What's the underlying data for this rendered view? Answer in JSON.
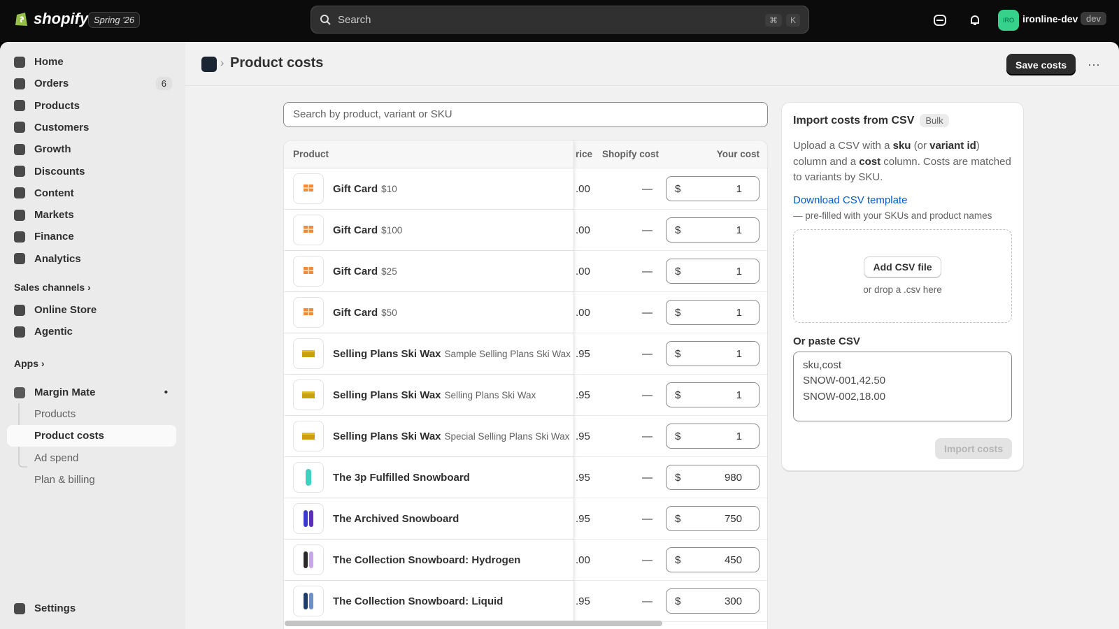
{
  "topbar": {
    "brand": "shopify",
    "badge": "Spring '26",
    "search": "Search",
    "shortcut": [
      "⌘",
      "K"
    ],
    "avatar": "IRO",
    "store": "ironline-dev",
    "store_tag": "dev"
  },
  "sidebar": {
    "nav": [
      {
        "label": "Home"
      },
      {
        "label": "Orders",
        "badge": 6
      },
      {
        "label": "Products"
      },
      {
        "label": "Customers"
      },
      {
        "label": "Growth"
      },
      {
        "label": "Discounts"
      },
      {
        "label": "Content"
      },
      {
        "label": "Markets"
      },
      {
        "label": "Finance"
      },
      {
        "label": "Analytics"
      }
    ],
    "sales_channels": {
      "title": "Sales channels",
      "items": [
        "Online Store",
        "Agentic"
      ]
    },
    "apps": {
      "title": "Apps"
    },
    "app": {
      "name": "Margin Mate",
      "items": [
        "Products",
        "Product costs",
        "Ad spend",
        "Plan & billing"
      ]
    },
    "settings": "Settings"
  },
  "header": {
    "title": "Product costs",
    "save": "Save costs"
  },
  "table": {
    "search_placeholder": "Search by product, variant or SKU",
    "columns": [
      "Product",
      "rice",
      "Shopify cost",
      "Your cost"
    ],
    "rows": [
      {
        "name": "Gift Card",
        "variant": "$10",
        "price": ".00",
        "shopify_cost": "—",
        "currency": "$",
        "cost": 1
      },
      {
        "name": "Gift Card",
        "variant": "$100",
        "price": ".00",
        "shopify_cost": "—",
        "currency": "$",
        "cost": 1
      },
      {
        "name": "Gift Card",
        "variant": "$25",
        "price": ".00",
        "shopify_cost": "—",
        "currency": "$",
        "cost": 1
      },
      {
        "name": "Gift Card",
        "variant": "$50",
        "price": ".00",
        "shopify_cost": "—",
        "currency": "$",
        "cost": 1
      },
      {
        "name": "Selling Plans Ski Wax",
        "variant": "Sample Selling Plans Ski Wax",
        "price": ".95",
        "shopify_cost": "—",
        "currency": "$",
        "cost": 1
      },
      {
        "name": "Selling Plans Ski Wax",
        "variant": "Selling Plans Ski Wax",
        "price": ".95",
        "shopify_cost": "—",
        "currency": "$",
        "cost": 1
      },
      {
        "name": "Selling Plans Ski Wax",
        "variant": "Special Selling Plans Ski Wax",
        "price": ".95",
        "shopify_cost": "—",
        "currency": "$",
        "cost": 1
      },
      {
        "name": "The 3p Fulfilled Snowboard",
        "price": ".95",
        "shopify_cost": "—",
        "currency": "$",
        "cost": 980
      },
      {
        "name": "The Archived Snowboard",
        "price": ".95",
        "shopify_cost": "—",
        "currency": "$",
        "cost": 750
      },
      {
        "name": "The Collection Snowboard: Hydrogen",
        "price": ".00",
        "shopify_cost": "—",
        "currency": "$",
        "cost": 450
      },
      {
        "name": "The Collection Snowboard: Liquid",
        "price": ".95",
        "shopify_cost": "—",
        "currency": "$",
        "cost": 300
      }
    ]
  },
  "import": {
    "title": "Import costs from CSV",
    "badge": "Bulk",
    "description": [
      {
        "text": "Upload a CSV with a "
      },
      {
        "text": "sku",
        "bold": true
      },
      {
        "text": " (or "
      },
      {
        "text": "variant id",
        "bold": true
      },
      {
        "text": ") column and a "
      },
      {
        "text": "cost",
        "bold": true
      },
      {
        "text": " column. Costs are matched to variants by SKU."
      }
    ],
    "template_link": "Download CSV template",
    "template_note": "— pre-filled with your SKUs and product names",
    "add_file": "Add CSV file",
    "drop_hint": "or drop a .csv here",
    "paste_label": "Or paste CSV",
    "paste_lines": [
      "sku,cost",
      "SNOW-001,42.50",
      "SNOW-002,18.00"
    ],
    "import_button": "Import costs"
  }
}
